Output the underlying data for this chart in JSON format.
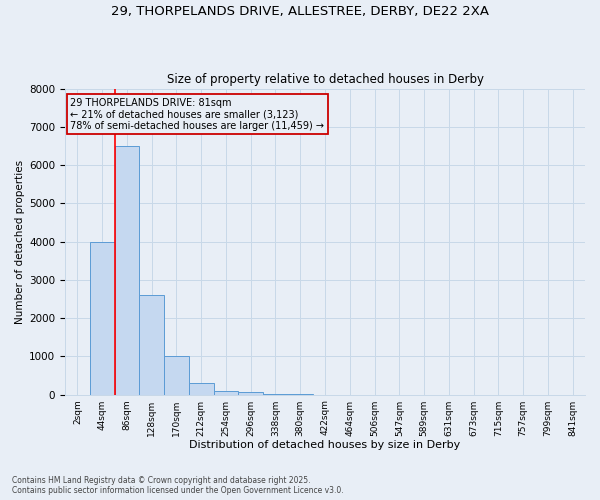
{
  "title_line1": "29, THORPELANDS DRIVE, ALLESTREE, DERBY, DE22 2XA",
  "title_line2": "Size of property relative to detached houses in Derby",
  "xlabel": "Distribution of detached houses by size in Derby",
  "ylabel": "Number of detached properties",
  "categories": [
    "2sqm",
    "44sqm",
    "86sqm",
    "128sqm",
    "170sqm",
    "212sqm",
    "254sqm",
    "296sqm",
    "338sqm",
    "380sqm",
    "422sqm",
    "464sqm",
    "506sqm",
    "547sqm",
    "589sqm",
    "631sqm",
    "673sqm",
    "715sqm",
    "757sqm",
    "799sqm",
    "841sqm"
  ],
  "bar_values": [
    0,
    4000,
    6500,
    2600,
    1000,
    300,
    100,
    60,
    20,
    5,
    2,
    0,
    0,
    0,
    0,
    0,
    0,
    0,
    0,
    0,
    0
  ],
  "bar_color": "#c5d8f0",
  "bar_edge_color": "#5b9bd5",
  "grid_color": "#c8d8e8",
  "bg_color": "#e8eef6",
  "red_line_index": 2,
  "annotation_text": "29 THORPELANDS DRIVE: 81sqm\n← 21% of detached houses are smaller (3,123)\n78% of semi-detached houses are larger (11,459) →",
  "annotation_box_color": "#cc0000",
  "ylim": [
    0,
    8000
  ],
  "yticks": [
    0,
    1000,
    2000,
    3000,
    4000,
    5000,
    6000,
    7000,
    8000
  ],
  "footnote_line1": "Contains HM Land Registry data © Crown copyright and database right 2025.",
  "footnote_line2": "Contains public sector information licensed under the Open Government Licence v3.0."
}
